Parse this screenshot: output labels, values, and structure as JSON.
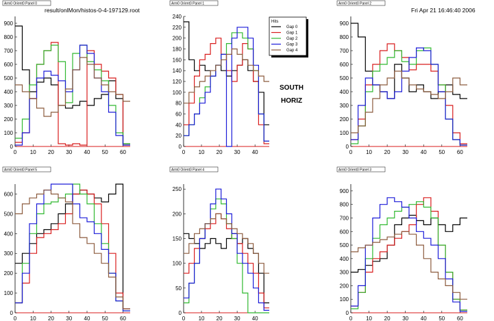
{
  "header": {
    "file_label": "result/onlMon/histos-0-4-197129.root",
    "date_label": "Fri Apr 21 16:46:40 2006"
  },
  "annotation": {
    "line1": "SOUTH",
    "line2": "HORIZ"
  },
  "legend": {
    "title": "Hits",
    "entries": [
      "Gap 0",
      "Gap 1",
      "Gap 2",
      "Gap 3",
      "Gap 4"
    ]
  },
  "colors": {
    "Gap 0": "#000000",
    "Gap 1": "#d81b1b",
    "Gap 2": "#2fb82f",
    "Gap 3": "#1a1ad8",
    "Gap 4": "#8b5a3c",
    "axis": "#d81b1b"
  },
  "chart_data": [
    {
      "type": "line",
      "title": "Arm0 Orient0 Panel 0",
      "xlim": [
        0,
        64
      ],
      "ylim": [
        0,
        950
      ],
      "xticks": [
        0,
        10,
        20,
        30,
        40,
        50,
        60
      ],
      "yticks": [
        0,
        100,
        200,
        300,
        400,
        500,
        600,
        700,
        800,
        900
      ],
      "x": [
        0,
        4,
        8,
        12,
        16,
        20,
        24,
        28,
        32,
        36,
        40,
        44,
        48,
        52,
        56,
        60
      ],
      "series": [
        {
          "name": "Gap 0",
          "values": [
            880,
            560,
            400,
            470,
            500,
            450,
            300,
            280,
            300,
            330,
            300,
            350,
            380,
            480,
            350,
            20
          ]
        },
        {
          "name": "Gap 1",
          "values": [
            30,
            100,
            350,
            600,
            700,
            760,
            20,
            10,
            20,
            10,
            700,
            600,
            550,
            500,
            380,
            10
          ]
        },
        {
          "name": "Gap 2",
          "values": [
            60,
            200,
            450,
            600,
            700,
            740,
            620,
            320,
            680,
            740,
            620,
            560,
            480,
            300,
            100,
            20
          ]
        },
        {
          "name": "Gap 3",
          "values": [
            10,
            100,
            350,
            500,
            550,
            520,
            480,
            400,
            560,
            740,
            680,
            500,
            400,
            250,
            80,
            10
          ]
        },
        {
          "name": "Gap 4",
          "values": [
            450,
            400,
            350,
            280,
            220,
            250,
            300,
            420,
            560,
            650,
            600,
            500,
            450,
            400,
            380,
            330
          ]
        }
      ]
    },
    {
      "type": "line",
      "title": "Arm0 Orient0 Panel 1",
      "xlim": [
        0,
        48
      ],
      "ylim": [
        0,
        240
      ],
      "xticks": [
        0,
        10,
        20,
        30,
        40
      ],
      "yticks": [
        0,
        20,
        40,
        60,
        80,
        100,
        120,
        140,
        160,
        180,
        200,
        220,
        240
      ],
      "x": [
        0,
        3,
        6,
        9,
        12,
        15,
        18,
        21,
        24,
        27,
        30,
        33,
        36,
        39,
        42,
        45
      ],
      "series": [
        {
          "name": "Gap 0",
          "values": [
            230,
            160,
            140,
            150,
            140,
            130,
            150,
            140,
            130,
            140,
            150,
            160,
            140,
            120,
            100,
            40
          ]
        },
        {
          "name": "Gap 1",
          "values": [
            40,
            80,
            130,
            160,
            170,
            190,
            200,
            170,
            140,
            120,
            150,
            190,
            180,
            120,
            40,
            5
          ]
        },
        {
          "name": "Gap 2",
          "values": [
            20,
            40,
            60,
            90,
            110,
            130,
            150,
            170,
            190,
            210,
            210,
            200,
            180,
            140,
            60,
            10
          ]
        },
        {
          "name": "Gap 3",
          "values": [
            20,
            40,
            60,
            80,
            100,
            130,
            150,
            170,
            0,
            200,
            220,
            220,
            200,
            150,
            60,
            10
          ]
        },
        {
          "name": "Gap 4",
          "values": [
            80,
            100,
            110,
            120,
            130,
            140,
            150,
            160,
            170,
            180,
            170,
            160,
            150,
            140,
            130,
            120
          ]
        }
      ]
    },
    {
      "type": "line",
      "title": "Arm0 Orient0 Panel 2",
      "xlim": [
        0,
        64
      ],
      "ylim": [
        0,
        950
      ],
      "xticks": [
        0,
        10,
        20,
        30,
        40,
        50,
        60
      ],
      "yticks": [
        0,
        100,
        200,
        300,
        400,
        500,
        600,
        700,
        800,
        900
      ],
      "x": [
        0,
        4,
        8,
        12,
        16,
        20,
        24,
        28,
        32,
        36,
        40,
        44,
        48,
        52,
        56,
        60
      ],
      "series": [
        {
          "name": "Gap 0",
          "values": [
            900,
            800,
            550,
            450,
            400,
            350,
            600,
            500,
            400,
            450,
            400,
            350,
            400,
            450,
            380,
            350
          ]
        },
        {
          "name": "Gap 1",
          "values": [
            50,
            200,
            450,
            600,
            700,
            750,
            700,
            650,
            560,
            600,
            600,
            550,
            450,
            300,
            100,
            20
          ]
        },
        {
          "name": "Gap 2",
          "values": [
            20,
            150,
            400,
            550,
            600,
            650,
            700,
            620,
            600,
            700,
            720,
            600,
            450,
            200,
            50,
            10
          ]
        },
        {
          "name": "Gap 3",
          "values": [
            50,
            300,
            500,
            450,
            400,
            350,
            400,
            550,
            650,
            720,
            700,
            600,
            400,
            200,
            50,
            10
          ]
        },
        {
          "name": "Gap 4",
          "values": [
            100,
            150,
            250,
            350,
            450,
            500,
            550,
            500,
            450,
            420,
            400,
            380,
            350,
            400,
            500,
            450
          ]
        }
      ]
    },
    {
      "type": "line",
      "title": "Arm0 Orient0 Panel 5",
      "xlim": [
        0,
        64
      ],
      "ylim": [
        0,
        650
      ],
      "xticks": [
        0,
        10,
        20,
        30,
        40,
        50,
        60
      ],
      "yticks": [
        0,
        100,
        200,
        300,
        400,
        500,
        600
      ],
      "x": [
        0,
        4,
        8,
        12,
        16,
        20,
        24,
        28,
        32,
        36,
        40,
        44,
        48,
        52,
        56,
        60
      ],
      "series": [
        {
          "name": "Gap 0",
          "values": [
            250,
            300,
            350,
            400,
            420,
            450,
            500,
            550,
            600,
            620,
            600,
            580,
            560,
            600,
            650,
            20
          ]
        },
        {
          "name": "Gap 1",
          "values": [
            50,
            150,
            300,
            380,
            400,
            420,
            450,
            500,
            600,
            620,
            600,
            550,
            450,
            300,
            100,
            20
          ]
        },
        {
          "name": "Gap 2",
          "values": [
            50,
            250,
            400,
            500,
            550,
            560,
            580,
            600,
            650,
            600,
            550,
            450,
            350,
            200,
            60,
            10
          ]
        },
        {
          "name": "Gap 3",
          "values": [
            50,
            200,
            450,
            550,
            620,
            680,
            700,
            650,
            550,
            480,
            460,
            400,
            320,
            200,
            60,
            10
          ]
        },
        {
          "name": "Gap 4",
          "values": [
            500,
            550,
            580,
            600,
            620,
            600,
            580,
            560,
            450,
            380,
            350,
            300,
            250,
            180,
            80,
            20
          ]
        }
      ]
    },
    {
      "type": "line",
      "title": "Arm0 Orient0 Panel 4",
      "xlim": [
        0,
        48
      ],
      "ylim": [
        0,
        260
      ],
      "xticks": [
        0,
        10,
        20,
        30,
        40
      ],
      "yticks": [
        0,
        50,
        100,
        150,
        200,
        250
      ],
      "x": [
        0,
        3,
        6,
        9,
        12,
        15,
        18,
        21,
        24,
        27,
        30,
        33,
        36,
        39,
        42,
        45
      ],
      "series": [
        {
          "name": "Gap 0",
          "values": [
            160,
            150,
            140,
            130,
            140,
            150,
            140,
            130,
            150,
            160,
            140,
            150,
            130,
            120,
            80,
            20
          ]
        },
        {
          "name": "Gap 1",
          "values": [
            80,
            100,
            130,
            150,
            170,
            180,
            200,
            190,
            170,
            150,
            140,
            120,
            100,
            80,
            40,
            10
          ]
        },
        {
          "name": "Gap 2",
          "values": [
            20,
            60,
            100,
            150,
            180,
            210,
            230,
            220,
            180,
            150,
            100,
            40,
            0,
            0,
            0,
            0
          ]
        },
        {
          "name": "Gap 3",
          "values": [
            30,
            60,
            100,
            150,
            180,
            220,
            250,
            230,
            200,
            160,
            120,
            100,
            80,
            50,
            20,
            5
          ]
        },
        {
          "name": "Gap 4",
          "values": [
            120,
            140,
            160,
            170,
            180,
            190,
            200,
            190,
            180,
            170,
            160,
            150,
            140,
            120,
            100,
            80
          ]
        }
      ]
    },
    {
      "type": "line",
      "title": "Arm0 Orient0 Panel 3",
      "xlim": [
        0,
        64
      ],
      "ylim": [
        0,
        950
      ],
      "xticks": [
        0,
        10,
        20,
        30,
        40,
        50,
        60
      ],
      "yticks": [
        0,
        100,
        200,
        300,
        400,
        500,
        600,
        700,
        800,
        900
      ],
      "x": [
        0,
        4,
        8,
        12,
        16,
        20,
        24,
        28,
        32,
        36,
        40,
        44,
        48,
        52,
        56,
        60
      ],
      "series": [
        {
          "name": "Gap 0",
          "values": [
            300,
            320,
            350,
            380,
            400,
            500,
            650,
            700,
            720,
            680,
            650,
            700,
            650,
            600,
            650,
            700
          ]
        },
        {
          "name": "Gap 1",
          "values": [
            50,
            150,
            300,
            400,
            450,
            500,
            550,
            600,
            650,
            800,
            850,
            750,
            500,
            300,
            100,
            20
          ]
        },
        {
          "name": "Gap 2",
          "values": [
            30,
            150,
            400,
            550,
            650,
            700,
            750,
            780,
            800,
            820,
            780,
            700,
            500,
            300,
            100,
            20
          ]
        },
        {
          "name": "Gap 3",
          "values": [
            50,
            200,
            500,
            700,
            800,
            850,
            820,
            780,
            700,
            600,
            550,
            500,
            400,
            250,
            80,
            10
          ]
        },
        {
          "name": "Gap 4",
          "values": [
            450,
            480,
            500,
            520,
            540,
            560,
            580,
            600,
            580,
            500,
            400,
            300,
            250,
            200,
            150,
            100
          ]
        }
      ]
    }
  ]
}
